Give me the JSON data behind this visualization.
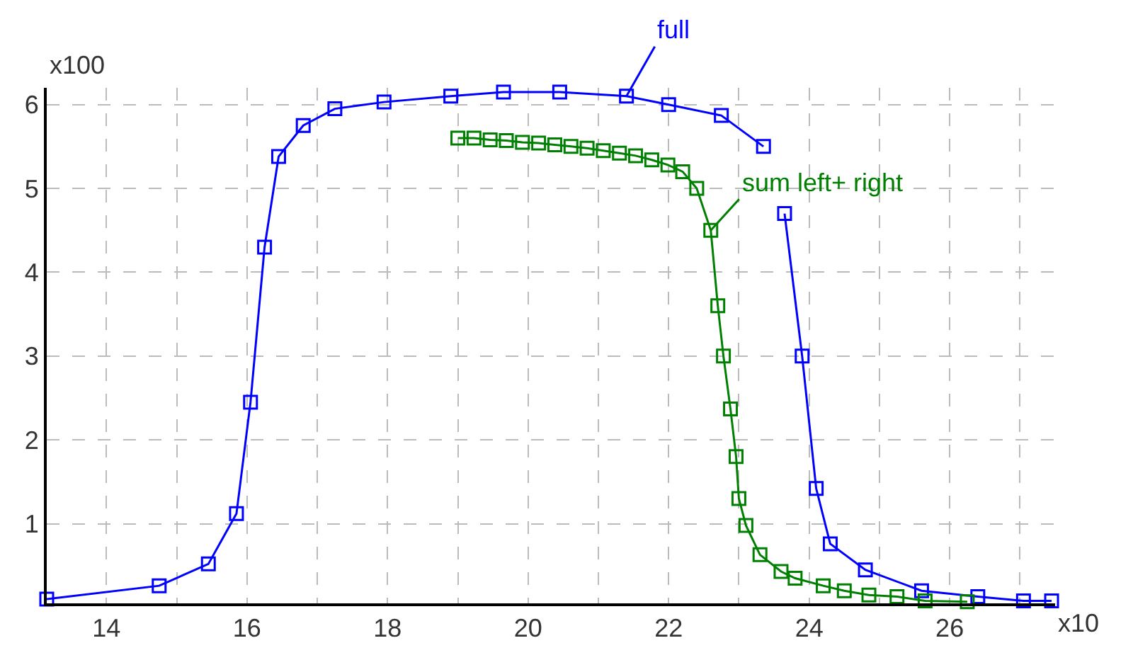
{
  "chart_data": {
    "type": "line",
    "xlabel": "x10",
    "ylabel": "x100",
    "xlim": [
      13.15,
      27.5
    ],
    "ylim": [
      0.05,
      6.2
    ],
    "xticks": [
      14,
      {
        "value": 15,
        "label": null
      },
      16,
      {
        "value": 17,
        "label": null
      },
      18,
      {
        "value": 19,
        "label": null
      },
      20,
      {
        "value": 21,
        "label": null
      },
      22,
      {
        "value": 23,
        "label": null
      },
      24,
      {
        "value": 25,
        "label": null
      },
      26,
      {
        "value": 27,
        "label": null
      }
    ],
    "yticks": [
      1,
      2,
      3,
      4,
      5,
      6
    ],
    "grid": true,
    "marker": "square",
    "line_style": "solid",
    "series": [
      {
        "color": "#0000ff",
        "x": [
          13.15,
          14.75,
          15.45,
          15.85,
          16.05,
          16.25,
          16.45,
          16.8,
          17.25,
          17.95,
          18.9,
          19.65,
          20.45,
          21.4,
          22.0,
          22.75,
          23.35,
          23.5,
          23.65,
          23.9,
          24.1,
          24.3,
          24.8,
          25.6,
          26.4,
          27.05,
          27.45
        ],
        "values": [
          0.1,
          0.26,
          0.52,
          1.12,
          2.45,
          4.3,
          5.38,
          5.75,
          5.95,
          6.03,
          6.1,
          6.15,
          6.15,
          6.1,
          6.0,
          5.87,
          5.5,
          null,
          4.7,
          3.0,
          1.42,
          0.76,
          0.45,
          0.2,
          0.13,
          0.08,
          0.08
        ]
      },
      {
        "color": "#008000",
        "x": [
          19.0,
          19.23,
          19.46,
          19.69,
          19.92,
          20.15,
          20.38,
          20.61,
          20.84,
          21.07,
          21.3,
          21.53,
          21.76,
          21.99,
          22.2,
          22.4,
          22.6,
          22.7,
          22.78,
          22.88,
          22.96,
          23.0,
          23.1,
          23.3,
          23.6,
          23.8,
          24.2,
          24.5,
          24.85,
          25.25,
          25.65,
          26.25
        ],
        "values": [
          5.6,
          5.6,
          5.58,
          5.57,
          5.55,
          5.54,
          5.52,
          5.5,
          5.48,
          5.45,
          5.42,
          5.39,
          5.34,
          5.28,
          5.2,
          5.0,
          4.5,
          3.6,
          3.0,
          2.37,
          1.8,
          1.3,
          0.98,
          0.63,
          0.43,
          0.35,
          0.26,
          0.2,
          0.15,
          0.13,
          0.08,
          0.07
        ]
      }
    ],
    "annotations": [
      {
        "text": "full",
        "x": 21.4,
        "y": 6.1
      },
      {
        "text": "sum left+ right",
        "x": 22.6,
        "y": 4.5
      }
    ]
  }
}
